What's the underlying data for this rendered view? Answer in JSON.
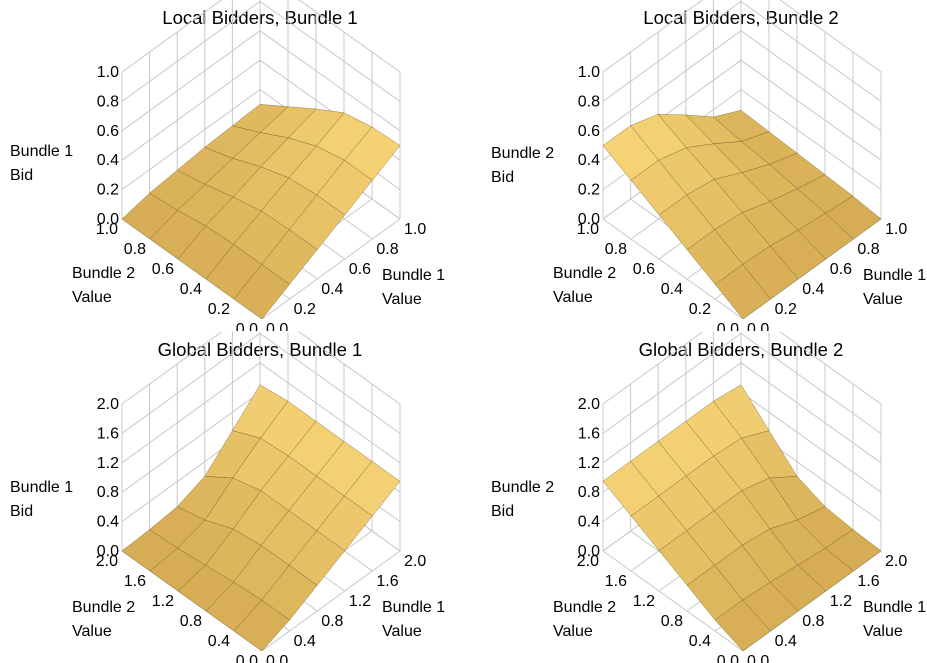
{
  "palette": {
    "surface_light": "#f8d678",
    "surface_mid": "#e4b352",
    "surface_dark": "#b98a36",
    "mesh": "#6b5421",
    "box": "#c8c8c8"
  },
  "charts": [
    {
      "title": "Local Bidders, Bundle 1",
      "zlabel": [
        "Bundle 1",
        "Bid"
      ],
      "xlabel": [
        "Bundle 1",
        "Value"
      ],
      "ylabel": [
        "Bundle 2",
        "Value"
      ],
      "ztick_labels": [
        "0.0",
        "0.2",
        "0.4",
        "0.6",
        "0.8",
        "1.0"
      ],
      "xtick_labels": [
        "0.0",
        "0.2",
        "0.4",
        "0.6",
        "0.8",
        "1.0"
      ],
      "ytick_labels": [
        "0.0",
        "0.2",
        "0.4",
        "0.6",
        "0.8",
        "1.0"
      ]
    },
    {
      "title": "Local Bidders, Bundle 2",
      "zlabel": [
        "Bundle 2",
        "Bid"
      ],
      "xlabel": [
        "Bundle 1",
        "Value"
      ],
      "ylabel": [
        "Bundle 2",
        "Value"
      ],
      "ztick_labels": [
        "0.0",
        "0.2",
        "0.4",
        "0.6",
        "0.8",
        "1.0"
      ],
      "xtick_labels": [
        "0.0",
        "0.2",
        "0.4",
        "0.6",
        "0.8",
        "1.0"
      ],
      "ytick_labels": [
        "0.0",
        "0.2",
        "0.4",
        "0.6",
        "0.8",
        "1.0"
      ]
    },
    {
      "title": "Global Bidders, Bundle 1",
      "zlabel": [
        "Bundle 1",
        "Bid"
      ],
      "xlabel": [
        "Bundle 1",
        "Value"
      ],
      "ylabel": [
        "Bundle 2",
        "Value"
      ],
      "ztick_labels": [
        "0.0",
        "0.4",
        "0.8",
        "1.2",
        "1.6",
        "2.0"
      ],
      "xtick_labels": [
        "0.0",
        "0.4",
        "0.8",
        "1.2",
        "1.6",
        "2.0"
      ],
      "ytick_labels": [
        "0.0",
        "0.4",
        "0.8",
        "1.2",
        "1.6",
        "2.0"
      ]
    },
    {
      "title": "Global Bidders, Bundle 2",
      "zlabel": [
        "Bundle 2",
        "Bid"
      ],
      "xlabel": [
        "Bundle 1",
        "Value"
      ],
      "ylabel": [
        "Bundle 2",
        "Value"
      ],
      "ztick_labels": [
        "0.0",
        "0.4",
        "0.8",
        "1.2",
        "1.6",
        "2.0"
      ],
      "xtick_labels": [
        "0.0",
        "0.4",
        "0.8",
        "1.2",
        "1.6",
        "2.0"
      ],
      "ytick_labels": [
        "0.0",
        "0.4",
        "0.8",
        "1.2",
        "1.6",
        "2.0"
      ]
    }
  ],
  "chart_data": [
    {
      "type": "surface",
      "title": "Local Bidders, Bundle 1",
      "xlabel": "Bundle 1 Value",
      "ylabel": "Bundle 2 Value",
      "zlabel": "Bundle 1 Bid",
      "xlim": [
        0,
        1
      ],
      "ylim": [
        0,
        1
      ],
      "zlim": [
        0,
        1
      ],
      "x": [
        0,
        0.2,
        0.4,
        0.6,
        0.8,
        1.0
      ],
      "y": [
        0,
        0.2,
        0.4,
        0.6,
        0.8,
        1.0
      ],
      "z": [
        [
          0,
          0.1,
          0.2,
          0.3,
          0.4,
          0.5
        ],
        [
          0,
          0.1,
          0.2,
          0.3,
          0.4,
          0.49
        ],
        [
          0,
          0.1,
          0.19,
          0.28,
          0.36,
          0.45
        ],
        [
          0,
          0.09,
          0.15,
          0.22,
          0.28,
          0.34
        ],
        [
          0,
          0.06,
          0.1,
          0.14,
          0.18,
          0.22
        ],
        [
          0,
          0.04,
          0.06,
          0.08,
          0.09,
          0.1
        ]
      ]
    },
    {
      "type": "surface",
      "title": "Local Bidders, Bundle 2",
      "xlabel": "Bundle 1 Value",
      "ylabel": "Bundle 2 Value",
      "zlabel": "Bundle 2 Bid",
      "xlim": [
        0,
        1
      ],
      "ylim": [
        0,
        1
      ],
      "zlim": [
        0,
        1
      ],
      "x": [
        0,
        0.2,
        0.4,
        0.6,
        0.8,
        1.0
      ],
      "y": [
        0,
        0.2,
        0.4,
        0.6,
        0.8,
        1.0
      ],
      "z": [
        [
          0,
          0,
          0,
          0,
          0,
          0
        ],
        [
          0.1,
          0.1,
          0.09,
          0.06,
          0.04,
          0.02
        ],
        [
          0.2,
          0.2,
          0.18,
          0.12,
          0.07,
          0.03
        ],
        [
          0.3,
          0.3,
          0.27,
          0.18,
          0.1,
          0.04
        ],
        [
          0.4,
          0.4,
          0.35,
          0.24,
          0.12,
          0.05
        ],
        [
          0.5,
          0.5,
          0.44,
          0.3,
          0.15,
          0.06
        ]
      ]
    },
    {
      "type": "surface",
      "title": "Global Bidders, Bundle 1",
      "xlabel": "Bundle 1 Value",
      "ylabel": "Bundle 2 Value",
      "zlabel": "Bundle 1 Bid",
      "xlim": [
        0,
        2
      ],
      "ylim": [
        0,
        2
      ],
      "zlim": [
        0,
        2
      ],
      "x": [
        0,
        0.4,
        0.8,
        1.2,
        1.6,
        2.0
      ],
      "y": [
        0,
        0.4,
        0.8,
        1.2,
        1.6,
        2.0
      ],
      "z": [
        [
          0,
          0.15,
          0.35,
          0.55,
          0.75,
          0.95
        ],
        [
          0,
          0.15,
          0.35,
          0.55,
          0.75,
          0.95
        ],
        [
          0,
          0.12,
          0.35,
          0.55,
          0.75,
          0.95
        ],
        [
          0,
          0.08,
          0.3,
          0.55,
          0.75,
          0.95
        ],
        [
          0,
          0.04,
          0.15,
          0.45,
          0.72,
          0.95
        ],
        [
          0,
          0.02,
          0.06,
          0.2,
          0.55,
          0.9
        ]
      ]
    },
    {
      "type": "surface",
      "title": "Global Bidders, Bundle 2",
      "xlabel": "Bundle 1 Value",
      "ylabel": "Bundle 2 Value",
      "zlabel": "Bundle 2 Bid",
      "xlim": [
        0,
        2
      ],
      "ylim": [
        0,
        2
      ],
      "zlim": [
        0,
        2
      ],
      "x": [
        0,
        0.4,
        0.8,
        1.2,
        1.6,
        2.0
      ],
      "y": [
        0,
        0.4,
        0.8,
        1.2,
        1.6,
        2.0
      ],
      "z": [
        [
          0,
          0,
          0,
          0,
          0,
          0
        ],
        [
          0.15,
          0.15,
          0.12,
          0.08,
          0.04,
          0.02
        ],
        [
          0.35,
          0.35,
          0.35,
          0.3,
          0.15,
          0.06
        ],
        [
          0.55,
          0.55,
          0.55,
          0.55,
          0.45,
          0.2
        ],
        [
          0.75,
          0.75,
          0.75,
          0.75,
          0.72,
          0.55
        ],
        [
          0.95,
          0.95,
          0.95,
          0.95,
          0.95,
          0.9
        ]
      ]
    }
  ]
}
